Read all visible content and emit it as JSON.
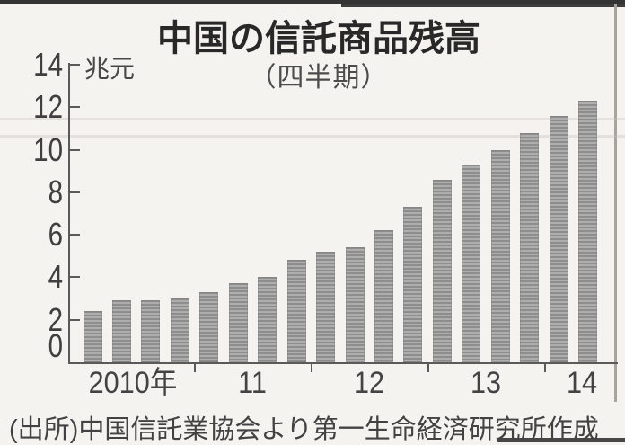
{
  "page": {
    "title": "中国の信託商品残高",
    "subtitle": "（四半期）",
    "unit_label": "兆元",
    "source_note": "(出所)中国信託業協会より第一生命経済研究所作成"
  },
  "colors": {
    "paper": "#f5f3ef",
    "bar_gray": "#9a9a9a",
    "ink": "#3b3b3b",
    "axis": "#5a5a5a"
  },
  "chart_data": {
    "type": "bar",
    "title": "中国の信託商品残高",
    "subtitle": "（四半期）",
    "ylabel": "兆元",
    "ylim": [
      0,
      14
    ],
    "y_ticks": [
      0,
      2,
      4,
      6,
      8,
      10,
      12,
      14
    ],
    "x_tick_labels": [
      "2010年",
      "11",
      "12",
      "13",
      "14"
    ],
    "categories": [
      "2010 Q1",
      "2010 Q2",
      "2010 Q3",
      "2010 Q4",
      "2011 Q1",
      "2011 Q2",
      "2011 Q3",
      "2011 Q4",
      "2012 Q1",
      "2012 Q2",
      "2012 Q3",
      "2012 Q4",
      "2013 Q1",
      "2013 Q2",
      "2013 Q3",
      "2013 Q4",
      "2014 Q1",
      "2014 Q2"
    ],
    "values": [
      2.4,
      2.9,
      2.9,
      3.0,
      3.3,
      3.7,
      4.0,
      4.8,
      5.2,
      5.4,
      6.2,
      7.3,
      8.6,
      9.3,
      10.0,
      10.8,
      11.6,
      12.3
    ],
    "grid": false,
    "legend": "none",
    "source": "(出所)中国信託業協会より第一生命経済研究所作成"
  }
}
